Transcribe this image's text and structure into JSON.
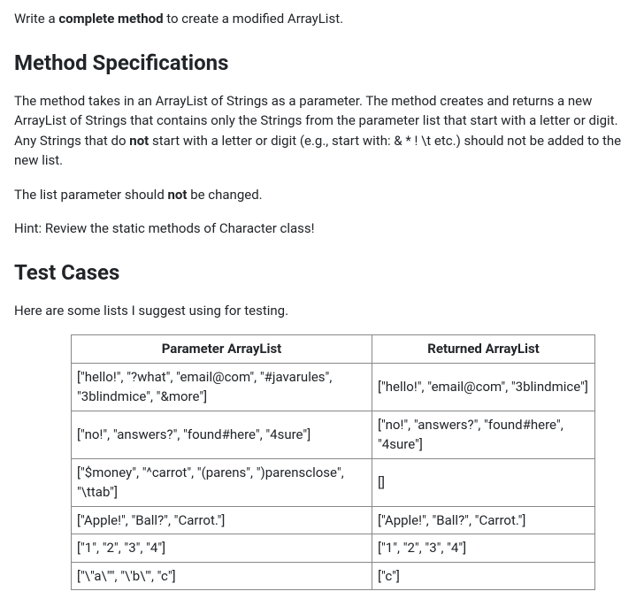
{
  "intro_prefix": "Write a ",
  "intro_bold": "complete method",
  "intro_suffix": " to create a modified ArrayList.",
  "spec_heading": "Method Specifications",
  "spec_p1_a": "The method takes in an ArrayList of Strings as a parameter. The method creates and returns a new ArrayList of Strings that contains only the Strings from the parameter list that start with a letter or digit. Any Strings that do ",
  "spec_p1_bold": "not",
  "spec_p1_b": " start with a letter or digit (e.g., start with: &  *  !  \\t   etc.) should not be added to the new list.",
  "spec_p2_a": "The list parameter should ",
  "spec_p2_bold": "not",
  "spec_p2_b": " be changed.",
  "spec_p3": "Hint: Review the static methods of Character class!",
  "test_heading": "Test Cases",
  "test_p1": "Here are some lists I suggest using for testing.",
  "table": {
    "header_param": "Parameter ArrayList",
    "header_return": "Returned ArrayList",
    "rows": [
      {
        "param": "[\"hello!\", \"?what\", \"email@com\", \"#javarules\", \"3blindmice\", \"&more\"]",
        "ret": "[\"hello!\", \"email@com\", \"3blindmice\"]"
      },
      {
        "param": "[\"no!\", \"answers?\", \"found#here\", \"4sure\"]",
        "ret": "[\"no!\", \"answers?\", \"found#here\", \"4sure\"]"
      },
      {
        "param": "[\"$money\", \"^carrot\", \"(parens\", \")parensclose\", \"\\ttab\"]",
        "ret": "[]"
      },
      {
        "param": "[\"Apple!\", \"Ball?\", \"Carrot.\"]",
        "ret": "[\"Apple!\", \"Ball?\", \"Carrot.\"]"
      },
      {
        "param": "[\"1\", \"2\", \"3\", \"4\"]",
        "ret": "[\"1\", \"2\", \"3\", \"4\"]"
      },
      {
        "param": "[\"\\\"a\\\"\", \"\\'b\\'\", \"c\"]",
        "ret": "[\"c\"]"
      }
    ]
  }
}
